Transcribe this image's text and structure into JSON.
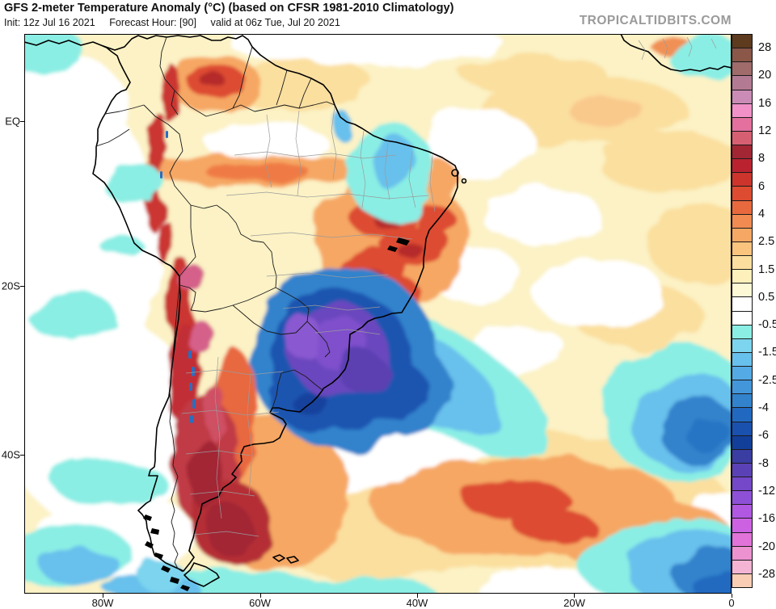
{
  "header": {
    "title": "GFS 2-meter Temperature Anomaly (°C) (based on CFSR 1981-2010 Climatology)",
    "init": "Init: 12z Jul 16 2021",
    "forecast_hour": "Forecast Hour: [90]",
    "valid": "valid at 06z Tue, Jul 20 2021",
    "logo": "TROPICALTIDBITS.COM"
  },
  "map": {
    "lat_labels": [
      "EQ",
      "20S",
      "40S"
    ],
    "lon_labels": [
      "80W",
      "60W",
      "40W",
      "20W",
      "0"
    ]
  },
  "colorbar": {
    "unit": "°C",
    "tick_labels": [
      "28",
      "20",
      "16",
      "12",
      "8",
      "6",
      "4",
      "2.5",
      "1.5",
      "0.5",
      "-0.5",
      "-1.5",
      "-2.5",
      "-4",
      "-6",
      "-8",
      "-12",
      "-16",
      "-20",
      "-28"
    ],
    "block_colors": [
      "#5e3a1e",
      "#8a5748",
      "#9f6b6b",
      "#b37b93",
      "#ca8cb6",
      "#f291c8",
      "#e3709e",
      "#d75f72",
      "#a32634",
      "#bb2230",
      "#cc342c",
      "#dd4b30",
      "#e9693e",
      "#f18b51",
      "#f6a763",
      "#fac37e",
      "#fcdf9e",
      "#fdf0ba",
      "#fdf8d6",
      "#ffffff",
      "#ffffff",
      "#8aeee4",
      "#7cd4ee",
      "#68c0ec",
      "#54aae4",
      "#4496da",
      "#3282cc",
      "#2169c0",
      "#1a51ae",
      "#123f9a",
      "#3a3da2",
      "#5a42b6",
      "#7448c8",
      "#8f50d8",
      "#b058e2",
      "#cc62e2",
      "#e273d8",
      "#ec92d0",
      "#f4b4d4",
      "#f9cdb4"
    ]
  }
}
